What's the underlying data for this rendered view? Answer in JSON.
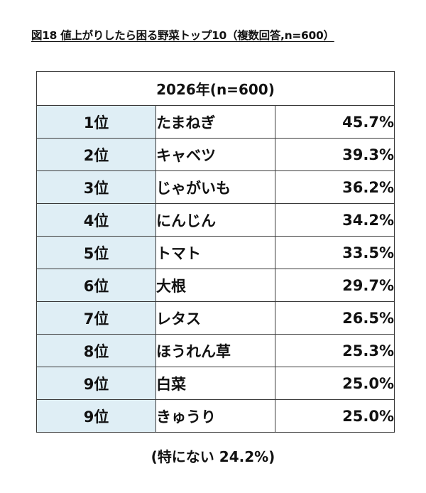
{
  "title": "図18 値上がりしたら困る野菜トップ10（複数回答,n=600）",
  "table": {
    "header": "2026年(n=600)",
    "rows": [
      {
        "rank": "1位",
        "name": "たまねぎ",
        "percent": "45.7%"
      },
      {
        "rank": "2位",
        "name": "キャベツ",
        "percent": "39.3%"
      },
      {
        "rank": "3位",
        "name": "じゃがいも",
        "percent": "36.2%"
      },
      {
        "rank": "4位",
        "name": "にんじん",
        "percent": "34.2%"
      },
      {
        "rank": "5位",
        "name": "トマト",
        "percent": "33.5%"
      },
      {
        "rank": "6位",
        "name": "大根",
        "percent": "29.7%"
      },
      {
        "rank": "7位",
        "name": "レタス",
        "percent": "26.5%"
      },
      {
        "rank": "8位",
        "name": "ほうれん草",
        "percent": "25.3%"
      },
      {
        "rank": "9位",
        "name": "白菜",
        "percent": "25.0%"
      },
      {
        "rank": "9位",
        "name": "きゅうり",
        "percent": "25.0%"
      }
    ]
  },
  "footnote": "(特にない 24.2%)",
  "colors": {
    "rank_cell_background": "#dfeef5",
    "border": "#3a3a3a"
  }
}
